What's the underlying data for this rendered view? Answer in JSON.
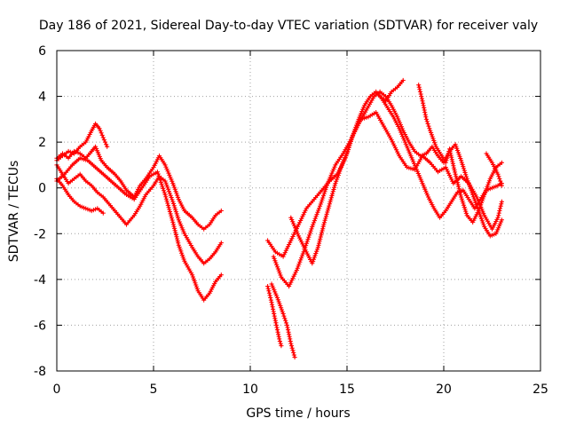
{
  "chart_data": {
    "type": "scatter",
    "title": "Day 186 of 2021, Sidereal Day-to-day VTEC variation (SDTVAR) for receiver valy",
    "xlabel": "GPS time / hours",
    "ylabel": "SDTVAR / TECUs",
    "xlim": [
      0,
      25
    ],
    "ylim": [
      -8,
      6
    ],
    "xticks": [
      0,
      5,
      10,
      15,
      20,
      25
    ],
    "yticks": [
      -8,
      -6,
      -4,
      -2,
      0,
      2,
      4,
      6
    ],
    "grid": true,
    "marker": "+",
    "color": "#ff0000",
    "series": [
      {
        "name": "trace-1",
        "points": [
          [
            0.0,
            1.2
          ],
          [
            0.3,
            1.4
          ],
          [
            0.6,
            1.6
          ],
          [
            0.9,
            1.5
          ],
          [
            1.2,
            1.8
          ],
          [
            1.5,
            2.0
          ],
          [
            1.8,
            2.5
          ],
          [
            2.0,
            2.8
          ],
          [
            2.2,
            2.6
          ],
          [
            2.4,
            2.2
          ],
          [
            2.6,
            1.8
          ]
        ]
      },
      {
        "name": "trace-2",
        "points": [
          [
            0.0,
            1.3
          ],
          [
            0.3,
            1.5
          ],
          [
            0.6,
            1.3
          ],
          [
            0.9,
            1.6
          ],
          [
            1.2,
            1.5
          ],
          [
            1.5,
            1.3
          ],
          [
            1.8,
            1.6
          ],
          [
            2.0,
            1.8
          ],
          [
            2.3,
            1.2
          ],
          [
            2.6,
            0.9
          ],
          [
            3.0,
            0.6
          ],
          [
            3.3,
            0.3
          ],
          [
            3.6,
            -0.1
          ],
          [
            4.0,
            -0.4
          ],
          [
            4.3,
            0.1
          ],
          [
            4.6,
            0.4
          ],
          [
            5.0,
            0.9
          ],
          [
            5.3,
            1.4
          ],
          [
            5.6,
            1.0
          ],
          [
            6.0,
            0.2
          ],
          [
            6.3,
            -0.5
          ],
          [
            6.6,
            -1.0
          ],
          [
            7.0,
            -1.3
          ],
          [
            7.3,
            -1.6
          ],
          [
            7.6,
            -1.8
          ],
          [
            7.9,
            -1.6
          ],
          [
            8.2,
            -1.2
          ],
          [
            8.5,
            -1.0
          ]
        ]
      },
      {
        "name": "trace-3",
        "points": [
          [
            0.0,
            0.4
          ],
          [
            0.3,
            0.1
          ],
          [
            0.6,
            -0.3
          ],
          [
            0.9,
            -0.6
          ],
          [
            1.2,
            -0.8
          ],
          [
            1.5,
            -0.9
          ],
          [
            1.8,
            -1.0
          ],
          [
            2.1,
            -0.9
          ],
          [
            2.4,
            -1.1
          ]
        ]
      },
      {
        "name": "trace-4",
        "points": [
          [
            0.0,
            1.0
          ],
          [
            0.3,
            0.6
          ],
          [
            0.6,
            0.2
          ],
          [
            0.9,
            0.4
          ],
          [
            1.2,
            0.6
          ],
          [
            1.5,
            0.3
          ],
          [
            1.8,
            0.1
          ],
          [
            2.1,
            -0.2
          ],
          [
            2.4,
            -0.4
          ],
          [
            2.7,
            -0.7
          ],
          [
            3.0,
            -1.0
          ],
          [
            3.3,
            -1.3
          ],
          [
            3.6,
            -1.6
          ],
          [
            4.0,
            -1.2
          ],
          [
            4.3,
            -0.8
          ],
          [
            4.6,
            -0.3
          ],
          [
            5.0,
            0.1
          ],
          [
            5.3,
            0.5
          ],
          [
            5.6,
            0.3
          ],
          [
            6.0,
            -0.6
          ],
          [
            6.3,
            -1.4
          ],
          [
            6.6,
            -2.0
          ],
          [
            7.0,
            -2.6
          ],
          [
            7.3,
            -3.0
          ],
          [
            7.6,
            -3.3
          ],
          [
            7.9,
            -3.1
          ],
          [
            8.2,
            -2.8
          ],
          [
            8.5,
            -2.4
          ]
        ]
      },
      {
        "name": "trace-5",
        "points": [
          [
            0.0,
            0.3
          ],
          [
            0.4,
            0.6
          ],
          [
            0.8,
            1.0
          ],
          [
            1.2,
            1.3
          ],
          [
            1.6,
            1.2
          ],
          [
            2.0,
            0.9
          ],
          [
            2.4,
            0.6
          ],
          [
            2.8,
            0.3
          ],
          [
            3.2,
            0.0
          ],
          [
            3.6,
            -0.3
          ],
          [
            4.0,
            -0.5
          ],
          [
            4.4,
            0.0
          ],
          [
            4.8,
            0.5
          ],
          [
            5.2,
            0.7
          ],
          [
            5.6,
            -0.3
          ],
          [
            6.0,
            -1.5
          ],
          [
            6.3,
            -2.5
          ],
          [
            6.6,
            -3.2
          ],
          [
            7.0,
            -3.8
          ],
          [
            7.3,
            -4.5
          ],
          [
            7.6,
            -4.9
          ],
          [
            7.9,
            -4.6
          ],
          [
            8.2,
            -4.1
          ],
          [
            8.5,
            -3.8
          ]
        ]
      },
      {
        "name": "trace-6",
        "points": [
          [
            10.9,
            -4.3
          ],
          [
            11.1,
            -5.0
          ],
          [
            11.3,
            -5.8
          ],
          [
            11.5,
            -6.6
          ],
          [
            11.6,
            -6.9
          ]
        ]
      },
      {
        "name": "trace-7",
        "points": [
          [
            11.1,
            -4.2
          ],
          [
            11.4,
            -4.8
          ],
          [
            11.7,
            -5.5
          ],
          [
            11.9,
            -6.0
          ],
          [
            12.1,
            -6.8
          ],
          [
            12.3,
            -7.4
          ]
        ]
      },
      {
        "name": "trace-8",
        "points": [
          [
            10.9,
            -2.3
          ],
          [
            11.3,
            -2.8
          ],
          [
            11.7,
            -3.0
          ],
          [
            12.1,
            -2.3
          ],
          [
            12.5,
            -1.6
          ],
          [
            12.9,
            -0.9
          ],
          [
            13.3,
            -0.5
          ],
          [
            13.7,
            -0.1
          ],
          [
            14.1,
            0.3
          ],
          [
            14.5,
            0.6
          ],
          [
            14.9,
            1.3
          ],
          [
            15.3,
            2.3
          ],
          [
            15.7,
            3.0
          ],
          [
            16.1,
            3.1
          ],
          [
            16.5,
            3.3
          ],
          [
            16.9,
            2.7
          ],
          [
            17.3,
            2.1
          ],
          [
            17.7,
            1.4
          ],
          [
            18.1,
            0.9
          ],
          [
            18.5,
            0.8
          ],
          [
            18.9,
            1.4
          ],
          [
            19.3,
            1.1
          ],
          [
            19.7,
            0.7
          ],
          [
            20.1,
            0.9
          ],
          [
            20.5,
            0.2
          ],
          [
            20.9,
            0.5
          ],
          [
            21.3,
            0.2
          ],
          [
            21.7,
            -0.4
          ],
          [
            22.1,
            -1.2
          ],
          [
            22.5,
            -1.8
          ],
          [
            22.8,
            -1.3
          ],
          [
            23.0,
            -0.6
          ]
        ]
      },
      {
        "name": "trace-9",
        "points": [
          [
            11.2,
            -3.0
          ],
          [
            11.6,
            -3.9
          ],
          [
            12.0,
            -4.3
          ],
          [
            12.4,
            -3.6
          ],
          [
            12.8,
            -2.7
          ],
          [
            13.2,
            -1.7
          ],
          [
            13.6,
            -0.8
          ],
          [
            14.0,
            0.2
          ],
          [
            14.4,
            1.0
          ],
          [
            14.8,
            1.5
          ],
          [
            15.2,
            2.1
          ],
          [
            15.6,
            2.8
          ],
          [
            16.0,
            3.4
          ],
          [
            16.4,
            4.0
          ],
          [
            16.7,
            4.2
          ],
          [
            17.0,
            4.0
          ],
          [
            17.3,
            3.6
          ],
          [
            17.6,
            3.1
          ],
          [
            17.9,
            2.5
          ],
          [
            18.2,
            2.0
          ],
          [
            18.5,
            1.6
          ],
          [
            18.8,
            1.4
          ],
          [
            19.1,
            1.5
          ],
          [
            19.4,
            1.8
          ],
          [
            19.7,
            1.4
          ],
          [
            20.0,
            1.1
          ],
          [
            20.3,
            1.6
          ],
          [
            20.6,
            1.9
          ],
          [
            20.9,
            1.2
          ],
          [
            21.2,
            0.4
          ],
          [
            21.5,
            -0.3
          ],
          [
            21.8,
            -1.0
          ],
          [
            22.1,
            -1.7
          ],
          [
            22.4,
            -2.1
          ],
          [
            22.7,
            -2.0
          ],
          [
            23.0,
            -1.4
          ]
        ]
      },
      {
        "name": "trace-10",
        "points": [
          [
            12.1,
            -1.3
          ],
          [
            12.5,
            -2.1
          ],
          [
            12.9,
            -2.8
          ],
          [
            13.2,
            -3.3
          ],
          [
            13.5,
            -2.6
          ],
          [
            13.8,
            -1.6
          ],
          [
            14.1,
            -0.7
          ],
          [
            14.4,
            0.2
          ],
          [
            14.7,
            0.9
          ],
          [
            15.0,
            1.5
          ],
          [
            15.3,
            2.3
          ],
          [
            15.6,
            3.0
          ],
          [
            15.9,
            3.6
          ],
          [
            16.2,
            4.0
          ],
          [
            16.5,
            4.2
          ],
          [
            16.8,
            3.9
          ],
          [
            17.1,
            3.5
          ],
          [
            17.4,
            3.1
          ],
          [
            17.7,
            2.6
          ],
          [
            18.0,
            2.0
          ],
          [
            18.3,
            1.4
          ],
          [
            18.6,
            0.8
          ],
          [
            18.9,
            0.2
          ],
          [
            19.2,
            -0.4
          ],
          [
            19.5,
            -0.9
          ],
          [
            19.8,
            -1.3
          ],
          [
            20.1,
            -1.0
          ],
          [
            20.4,
            -0.6
          ],
          [
            20.7,
            -0.2
          ],
          [
            21.0,
            -0.1
          ],
          [
            21.3,
            -0.5
          ],
          [
            21.6,
            -0.9
          ],
          [
            21.9,
            -0.5
          ],
          [
            22.2,
            -0.1
          ],
          [
            22.5,
            0.0
          ],
          [
            22.8,
            0.1
          ],
          [
            23.0,
            0.2
          ]
        ]
      },
      {
        "name": "trace-11",
        "points": [
          [
            18.7,
            4.5
          ],
          [
            18.9,
            3.8
          ],
          [
            19.1,
            3.0
          ],
          [
            19.3,
            2.5
          ],
          [
            19.6,
            1.8
          ],
          [
            19.9,
            1.4
          ],
          [
            20.1,
            1.1
          ],
          [
            20.3,
            1.7
          ],
          [
            20.6,
            0.6
          ],
          [
            20.9,
            -0.4
          ],
          [
            21.2,
            -1.2
          ],
          [
            21.5,
            -1.5
          ],
          [
            21.8,
            -1.0
          ],
          [
            22.1,
            -0.3
          ],
          [
            22.4,
            0.4
          ],
          [
            22.7,
            0.9
          ],
          [
            23.0,
            1.1
          ]
        ]
      },
      {
        "name": "trace-12",
        "points": [
          [
            16.7,
            4.0
          ],
          [
            17.0,
            3.8
          ],
          [
            17.3,
            4.2
          ],
          [
            17.6,
            4.4
          ],
          [
            17.9,
            4.7
          ]
        ]
      },
      {
        "name": "trace-13",
        "points": [
          [
            22.2,
            1.5
          ],
          [
            22.5,
            1.1
          ],
          [
            22.8,
            0.6
          ],
          [
            23.0,
            0.1
          ]
        ]
      }
    ]
  }
}
